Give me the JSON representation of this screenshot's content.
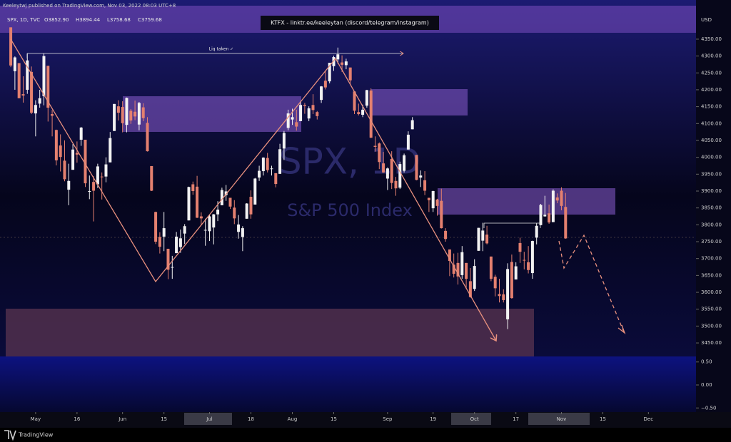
{
  "header": {
    "published": "Keeleytwj published on TradingView.com, Nov 03, 2022 08:03 UTC+8",
    "symbol": "SPX, 1D, TVC",
    "ohlc": [
      "O3852.90",
      "H3894.44",
      "L3758.68",
      "C3759.68"
    ],
    "banner": "KTFX - linktr.ee/keeleytan (discord/telegram/instagram)"
  },
  "footer": {
    "brand": "TradingView"
  },
  "chart_data": {
    "type": "candlestick",
    "watermark": "SPX, 1D",
    "watermark_subtitle": "S&P 500 Index",
    "currency": "USD",
    "annotation": "Liq taken ✓",
    "up_color": "#f2f2f2",
    "down_color": "#e4806f",
    "open": [
      4385,
      4255,
      4279,
      4187,
      4200,
      4253,
      4130,
      4159,
      4181,
      4271,
      4128,
      4081,
      4035,
      3990,
      3904,
      3963,
      4013,
      4052,
      4052,
      3900,
      3927,
      3920,
      3943,
      3943,
      3985,
      4078,
      4151,
      4149,
      4096,
      4138,
      4135,
      4097,
      4148,
      4102,
      3974,
      3838,
      3764,
      3765,
      3729,
      3675,
      3716,
      3734,
      3774,
      3813,
      3920,
      3913,
      3825,
      3785,
      3781,
      3792,
      3831,
      3858,
      3888,
      3880,
      3851,
      3779,
      3764,
      3818,
      3883,
      3860,
      3940,
      3959,
      3998,
      3965,
      3953,
      3951,
      4026,
      4087,
      4112,
      4104,
      4107,
      4155,
      4115,
      4155,
      4134,
      4170,
      4227,
      4225,
      4270,
      4290,
      4281,
      4273,
      4266,
      4195,
      4134,
      4126,
      4153,
      4198,
      4034,
      4041,
      3982,
      3937,
      3995,
      3930,
      3910,
      3960,
      4023,
      4083,
      4007,
      3940,
      3932,
      3880,
      3849,
      3875,
      3871,
      3782,
      3727,
      3682,
      3687,
      3651,
      3687,
      3633,
      3610,
      3723,
      3753,
      3771,
      3706,
      3646,
      3595,
      3594,
      3520,
      3690,
      3638,
      3746,
      3696,
      3689,
      3657,
      3762,
      3799,
      3825,
      3834,
      3808,
      3881,
      3901,
      3852.9
    ],
    "high": [
      4385,
      4299,
      4279,
      4240,
      4308,
      4269,
      4169,
      4200,
      4308,
      4271,
      4140,
      4082,
      4068,
      4050,
      3981,
      4039,
      4047,
      4090,
      4052,
      3946,
      3944,
      3981,
      3955,
      4000,
      4075,
      4158,
      4169,
      4166,
      4177,
      4143,
      4168,
      4164,
      4160,
      4119,
      3974,
      3839,
      3778,
      3838,
      3729,
      3708,
      3779,
      3786,
      3802,
      3913,
      3928,
      3945,
      3837,
      3818,
      3829,
      3832,
      3870,
      3910,
      3918,
      3880,
      3873,
      3829,
      3796,
      3864,
      3902,
      3939,
      3975,
      4000,
      4013,
      3975,
      3953,
      4040,
      4078,
      4141,
      4144,
      4141,
      4167,
      4161,
      4151,
      4187,
      4137,
      4211,
      4257,
      4280,
      4301,
      4325,
      4302,
      4292,
      4266,
      4195,
      4159,
      4156,
      4200,
      4204,
      4062,
      4044,
      4016,
      3970,
      4018,
      3942,
      3987,
      4011,
      4077,
      4119,
      4007,
      3961,
      3959,
      3880,
      3901,
      3877,
      3907,
      3790,
      3727,
      3715,
      3717,
      3737,
      3687,
      3672,
      3698,
      3791,
      3806,
      3797,
      3706,
      3652,
      3640,
      3609,
      3686,
      3712,
      3689,
      3762,
      3720,
      3737,
      3753,
      3805,
      3862,
      3886,
      3860,
      3905,
      3893,
      3911,
      3894.44
    ],
    "low": [
      4267,
      4200,
      4175,
      4162,
      4188,
      4128,
      4062,
      4147,
      4154,
      4106,
      4062,
      3976,
      3958,
      3929,
      3858,
      3963,
      3984,
      4034,
      3912,
      3876,
      3810,
      3909,
      3875,
      3926,
      3985,
      4078,
      4109,
      4074,
      4074,
      4099,
      4110,
      4080,
      4107,
      4017,
      3900,
      3743,
      3715,
      3722,
      3639,
      3640,
      3716,
      3717,
      3743,
      3813,
      3889,
      3820,
      3800,
      3738,
      3752,
      3742,
      3811,
      3858,
      3871,
      3847,
      3802,
      3759,
      3722,
      3818,
      3818,
      3860,
      3930,
      3946,
      3955,
      3946,
      3911,
      3951,
      3992,
      4080,
      4096,
      4079,
      4107,
      4129,
      4107,
      4128,
      4112,
      4161,
      4201,
      4219,
      4256,
      4277,
      4253,
      4261,
      4218,
      4128,
      4124,
      4119,
      4147,
      4057,
      4017,
      3965,
      3954,
      3903,
      3906,
      3886,
      3906,
      3955,
      4023,
      4083,
      3932,
      3912,
      3888,
      3838,
      3838,
      3827,
      3789,
      3750,
      3648,
      3644,
      3623,
      3640,
      3610,
      3584,
      3604,
      3723,
      3722,
      3742,
      3633,
      3588,
      3570,
      3570,
      3491,
      3581,
      3638,
      3687,
      3668,
      3656,
      3640,
      3742,
      3799,
      3824,
      3803,
      3808,
      3864,
      3843,
      3758.68
    ],
    "close": [
      4272,
      4296,
      4175,
      4183,
      4287,
      4132,
      4155,
      4175,
      4300,
      4147,
      4123,
      3991,
      4001,
      3935,
      3930,
      4023,
      4008,
      4088,
      3923,
      3900,
      3901,
      3973,
      3941,
      3979,
      4057,
      4158,
      4132,
      4101,
      4176,
      4109,
      4121,
      4161,
      4116,
      4018,
      3901,
      3750,
      3735,
      3790,
      3667,
      3675,
      3765,
      3760,
      3796,
      3912,
      3900,
      3821,
      3819,
      3785,
      3825,
      3831,
      3845,
      3903,
      3899,
      3854,
      3819,
      3801,
      3790,
      3863,
      3831,
      3937,
      3960,
      3999,
      3962,
      3967,
      3921,
      4024,
      4072,
      4130,
      4119,
      4091,
      4155,
      4152,
      4145,
      4140,
      4122,
      4210,
      4207,
      4280,
      4297,
      4305,
      4274,
      4284,
      4228,
      4138,
      4128,
      4141,
      4199,
      4058,
      4031,
      3986,
      3955,
      3967,
      3924,
      3908,
      3980,
      4006,
      4067,
      4110,
      3933,
      3946,
      3901,
      3873,
      3900,
      3856,
      3790,
      3758,
      3693,
      3655,
      3647,
      3719,
      3640,
      3586,
      3678,
      3791,
      3783,
      3745,
      3640,
      3612,
      3589,
      3577,
      3669,
      3583,
      3677,
      3720,
      3695,
      3666,
      3752,
      3797,
      3859,
      3830,
      3807,
      3901,
      3872,
      3856,
      3759.68
    ],
    "xlim": [
      -2.6,
      165.5
    ],
    "xticks": [
      {
        "value": 6,
        "label": "May"
      },
      {
        "value": 16,
        "label": "16"
      },
      {
        "value": 27,
        "label": "Jun"
      },
      {
        "value": 37,
        "label": "15"
      },
      {
        "value": 48,
        "label": "Jul"
      },
      {
        "value": 58,
        "label": "18"
      },
      {
        "value": 68,
        "label": "Aug"
      },
      {
        "value": 78,
        "label": "15"
      },
      {
        "value": 91,
        "label": "Sep"
      },
      {
        "value": 102,
        "label": "19"
      },
      {
        "value": 112,
        "label": "Oct"
      },
      {
        "value": 122,
        "label": "17"
      },
      {
        "value": 133,
        "label": "Nov"
      },
      {
        "value": 143,
        "label": "15"
      },
      {
        "value": 154,
        "label": "Dec"
      }
    ],
    "ylim": [
      3410,
      4466
    ],
    "yticks": [
      {
        "value": 3450,
        "label": "3450.00"
      },
      {
        "value": 3500,
        "label": "3500.00"
      },
      {
        "value": 3550,
        "label": "3550.00"
      },
      {
        "value": 3600,
        "label": "3600.00"
      },
      {
        "value": 3650,
        "label": "3650.00"
      },
      {
        "value": 3700,
        "label": "3700.00"
      },
      {
        "value": 3750,
        "label": "3750.00"
      },
      {
        "value": 3800,
        "label": "3800.00"
      },
      {
        "value": 3850,
        "label": "3850.00"
      },
      {
        "value": 3900,
        "label": "3900.00"
      },
      {
        "value": 3950,
        "label": "3950.00"
      },
      {
        "value": 4000,
        "label": "4000.00"
      },
      {
        "value": 4050,
        "label": "4050.00"
      },
      {
        "value": 4100,
        "label": "4100.00"
      },
      {
        "value": 4150,
        "label": "4150.00"
      },
      {
        "value": 4200,
        "label": "4200.00"
      },
      {
        "value": 4250,
        "label": "4250.00"
      },
      {
        "value": 4300,
        "label": "4300.00"
      },
      {
        "value": 4350,
        "label": "4350.00"
      }
    ],
    "lower_pane": {
      "ylim": [
        -0.62,
        0.62
      ],
      "yticks": [
        {
          "value": 0.5,
          "label": "0.50"
        },
        {
          "value": 0,
          "label": "0.00"
        },
        {
          "value": -0.5,
          "label": "−0.50"
        }
      ]
    }
  }
}
